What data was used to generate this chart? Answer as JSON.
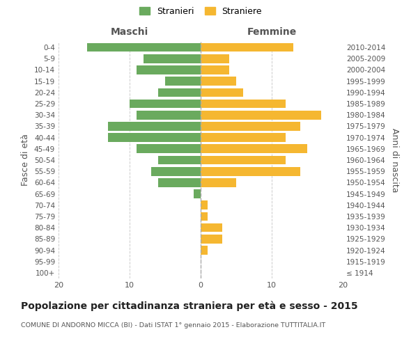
{
  "age_groups": [
    "100+",
    "95-99",
    "90-94",
    "85-89",
    "80-84",
    "75-79",
    "70-74",
    "65-69",
    "60-64",
    "55-59",
    "50-54",
    "45-49",
    "40-44",
    "35-39",
    "30-34",
    "25-29",
    "20-24",
    "15-19",
    "10-14",
    "5-9",
    "0-4"
  ],
  "birth_years": [
    "≤ 1914",
    "1915-1919",
    "1920-1924",
    "1925-1929",
    "1930-1934",
    "1935-1939",
    "1940-1944",
    "1945-1949",
    "1950-1954",
    "1955-1959",
    "1960-1964",
    "1965-1969",
    "1970-1974",
    "1975-1979",
    "1980-1984",
    "1985-1989",
    "1990-1994",
    "1995-1999",
    "2000-2004",
    "2005-2009",
    "2010-2014"
  ],
  "maschi": [
    0,
    0,
    0,
    0,
    0,
    0,
    0,
    1,
    6,
    7,
    6,
    9,
    13,
    13,
    9,
    10,
    6,
    5,
    9,
    8,
    16
  ],
  "femmine": [
    0,
    0,
    1,
    3,
    3,
    1,
    1,
    0,
    5,
    14,
    12,
    15,
    12,
    14,
    17,
    12,
    6,
    5,
    4,
    4,
    13
  ],
  "color_maschi": "#6aaa5e",
  "color_femmine": "#f5b731",
  "title_main": "Popolazione per cittadinanza straniera per età e sesso - 2015",
  "title_sub": "COMUNE DI ANDORNO MICCA (BI) - Dati ISTAT 1° gennaio 2015 - Elaborazione TUTTITALIA.IT",
  "label_maschi": "Stranieri",
  "label_femmine": "Straniere",
  "xlabel_left": "Maschi",
  "xlabel_right": "Femmine",
  "ylabel_left": "Fasce di età",
  "ylabel_right": "Anni di nascita",
  "xlim": 20,
  "background_color": "#ffffff",
  "grid_color": "#cccccc",
  "text_color": "#555555"
}
